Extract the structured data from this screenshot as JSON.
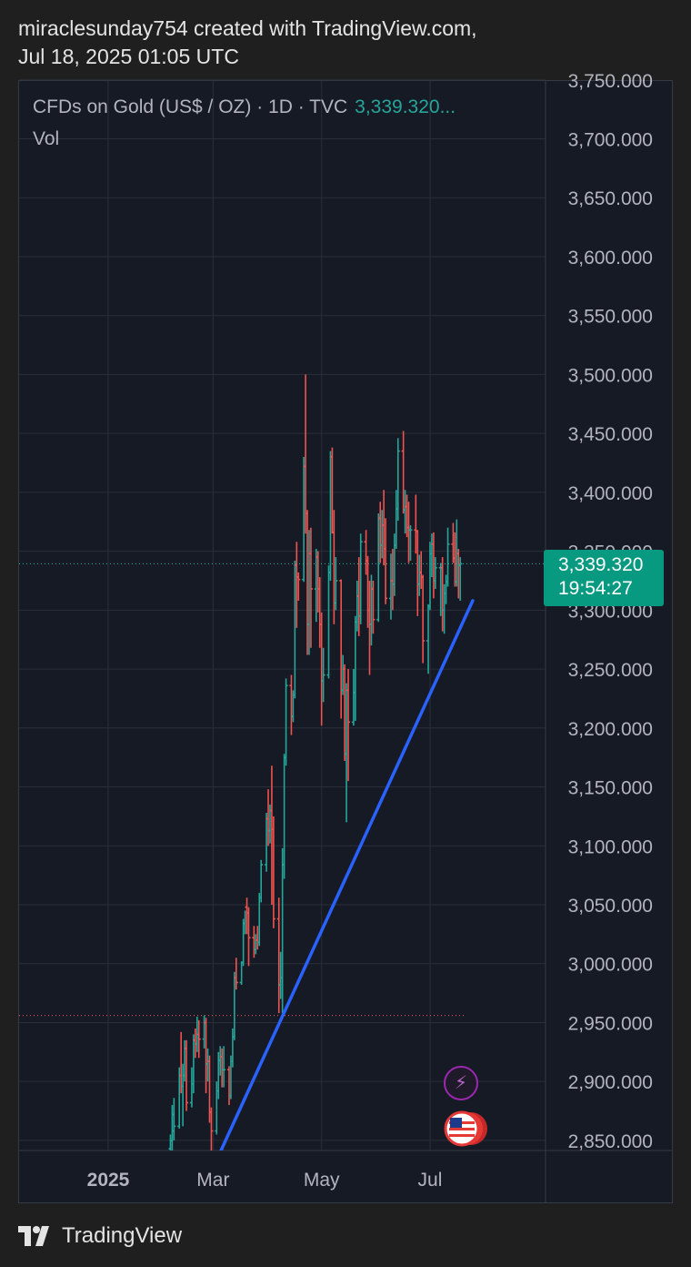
{
  "header": {
    "line1": "miraclesunday754 created with TradingView.com,",
    "line2": "Jul 18, 2025 01:05 UTC"
  },
  "legend": {
    "symbol": "CFDs on Gold (US$ / OZ) · 1D · TVC",
    "price": "3,339.320...",
    "volume_label": "Vol"
  },
  "price_tag": {
    "price": "3,339.320",
    "countdown": "19:54:27"
  },
  "footer": {
    "brand": "TradingView"
  },
  "colors": {
    "up": "#26a69a",
    "down": "#ef5350",
    "trendline": "#2962ff",
    "grid": "#2a2e39",
    "background": "#161a25"
  },
  "icons": {
    "event_bolt": "lightning-bolt-icon",
    "event_flag": "us-flag-icon"
  },
  "chart_data": {
    "type": "ohlc-bar",
    "title": "CFDs on Gold (US$ / OZ) · 1D · TVC",
    "ylim": [
      2840,
      3760
    ],
    "y_ticks": [
      {
        "value": 3700,
        "label": "3,700.000"
      },
      {
        "value": 3650,
        "label": "3,650.000"
      },
      {
        "value": 3600,
        "label": "3,600.000"
      },
      {
        "value": 3550,
        "label": "3,550.000"
      },
      {
        "value": 3500,
        "label": "3,500.000"
      },
      {
        "value": 3450,
        "label": "3,450.000"
      },
      {
        "value": 3400,
        "label": "3,400.000"
      },
      {
        "value": 3350,
        "label": "3,350.000"
      },
      {
        "value": 3300,
        "label": "3,300.000"
      },
      {
        "value": 3250,
        "label": "3,250.000"
      },
      {
        "value": 3200,
        "label": "3,200.000"
      },
      {
        "value": 3150,
        "label": "3,150.000"
      },
      {
        "value": 3100,
        "label": "3,100.000"
      },
      {
        "value": 3050,
        "label": "3,050.000"
      },
      {
        "value": 3000,
        "label": "3,000.000"
      },
      {
        "value": 2950,
        "label": "2,950.000"
      },
      {
        "value": 2900,
        "label": "2,900.000"
      },
      {
        "value": 2850,
        "label": "2,850.000"
      },
      {
        "value": 3750,
        "label": "3,750.000"
      }
    ],
    "x_ticks": [
      {
        "date": "2025-01-01",
        "label": "2025",
        "bold": true
      },
      {
        "date": "2025-03-01",
        "label": "Mar",
        "bold": false
      },
      {
        "date": "2025-05-01",
        "label": "May",
        "bold": false
      },
      {
        "date": "2025-07-01",
        "label": "Jul",
        "bold": false
      }
    ],
    "last_price": 3339.32,
    "reference_line": 2956,
    "trendline": [
      {
        "date": "2025-03-05",
        "value": 2840
      },
      {
        "date": "2025-07-25",
        "value": 3308
      }
    ],
    "bars": [
      {
        "date": "2025-02-05",
        "o": 2843,
        "h": 2855,
        "l": 2838,
        "c": 2850
      },
      {
        "date": "2025-02-06",
        "o": 2850,
        "h": 2880,
        "l": 2840,
        "c": 2872
      },
      {
        "date": "2025-02-07",
        "o": 2858,
        "h": 2886,
        "l": 2850,
        "c": 2862
      },
      {
        "date": "2025-02-10",
        "o": 2862,
        "h": 2912,
        "l": 2860,
        "c": 2905
      },
      {
        "date": "2025-02-11",
        "o": 2905,
        "h": 2942,
        "l": 2890,
        "c": 2896
      },
      {
        "date": "2025-02-12",
        "o": 2896,
        "h": 2915,
        "l": 2862,
        "c": 2905
      },
      {
        "date": "2025-02-13",
        "o": 2905,
        "h": 2935,
        "l": 2900,
        "c": 2928
      },
      {
        "date": "2025-02-14",
        "o": 2928,
        "h": 2935,
        "l": 2875,
        "c": 2882
      },
      {
        "date": "2025-02-17",
        "o": 2882,
        "h": 2912,
        "l": 2878,
        "c": 2898
      },
      {
        "date": "2025-02-18",
        "o": 2898,
        "h": 2940,
        "l": 2890,
        "c": 2935
      },
      {
        "date": "2025-02-19",
        "o": 2935,
        "h": 2945,
        "l": 2920,
        "c": 2932
      },
      {
        "date": "2025-02-20",
        "o": 2932,
        "h": 2955,
        "l": 2925,
        "c": 2940
      },
      {
        "date": "2025-02-21",
        "o": 2940,
        "h": 2952,
        "l": 2920,
        "c": 2936
      },
      {
        "date": "2025-02-24",
        "o": 2936,
        "h": 2956,
        "l": 2928,
        "c": 2950
      },
      {
        "date": "2025-02-25",
        "o": 2950,
        "h": 2954,
        "l": 2890,
        "c": 2915
      },
      {
        "date": "2025-02-26",
        "o": 2915,
        "h": 2928,
        "l": 2900,
        "c": 2917
      },
      {
        "date": "2025-02-27",
        "o": 2917,
        "h": 2922,
        "l": 2865,
        "c": 2874
      },
      {
        "date": "2025-02-28",
        "o": 2874,
        "h": 2878,
        "l": 2832,
        "c": 2858
      },
      {
        "date": "2025-03-03",
        "o": 2858,
        "h": 2900,
        "l": 2855,
        "c": 2892
      },
      {
        "date": "2025-03-04",
        "o": 2892,
        "h": 2925,
        "l": 2885,
        "c": 2918
      },
      {
        "date": "2025-03-05",
        "o": 2918,
        "h": 2930,
        "l": 2905,
        "c": 2921
      },
      {
        "date": "2025-03-06",
        "o": 2921,
        "h": 2928,
        "l": 2895,
        "c": 2910
      },
      {
        "date": "2025-03-07",
        "o": 2910,
        "h": 2930,
        "l": 2895,
        "c": 2910
      },
      {
        "date": "2025-03-10",
        "o": 2910,
        "h": 2913,
        "l": 2880,
        "c": 2888
      },
      {
        "date": "2025-03-11",
        "o": 2888,
        "h": 2922,
        "l": 2885,
        "c": 2917
      },
      {
        "date": "2025-03-12",
        "o": 2917,
        "h": 2945,
        "l": 2912,
        "c": 2938
      },
      {
        "date": "2025-03-13",
        "o": 2938,
        "h": 2993,
        "l": 2935,
        "c": 2988
      },
      {
        "date": "2025-03-14",
        "o": 2988,
        "h": 3005,
        "l": 2978,
        "c": 2984
      },
      {
        "date": "2025-03-17",
        "o": 2984,
        "h": 3002,
        "l": 2982,
        "c": 3001
      },
      {
        "date": "2025-03-18",
        "o": 3001,
        "h": 3038,
        "l": 2998,
        "c": 3034
      },
      {
        "date": "2025-03-19",
        "o": 3034,
        "h": 3045,
        "l": 3025,
        "c": 3048
      },
      {
        "date": "2025-03-20",
        "o": 3048,
        "h": 3056,
        "l": 3025,
        "c": 3043
      },
      {
        "date": "2025-03-21",
        "o": 3043,
        "h": 3048,
        "l": 2998,
        "c": 3022
      },
      {
        "date": "2025-03-24",
        "o": 3022,
        "h": 3032,
        "l": 3005,
        "c": 3012
      },
      {
        "date": "2025-03-25",
        "o": 3012,
        "h": 3025,
        "l": 3008,
        "c": 3020
      },
      {
        "date": "2025-03-26",
        "o": 3020,
        "h": 3032,
        "l": 3012,
        "c": 3018
      },
      {
        "date": "2025-03-27",
        "o": 3018,
        "h": 3060,
        "l": 3015,
        "c": 3056
      },
      {
        "date": "2025-03-28",
        "o": 3056,
        "h": 3088,
        "l": 3052,
        "c": 3084
      },
      {
        "date": "2025-03-31",
        "o": 3084,
        "h": 3128,
        "l": 3078,
        "c": 3123
      },
      {
        "date": "2025-04-01",
        "o": 3123,
        "h": 3148,
        "l": 3100,
        "c": 3113
      },
      {
        "date": "2025-04-02",
        "o": 3113,
        "h": 3135,
        "l": 3102,
        "c": 3130
      },
      {
        "date": "2025-04-03",
        "o": 3130,
        "h": 3168,
        "l": 3050,
        "c": 3114
      },
      {
        "date": "2025-04-04",
        "o": 3114,
        "h": 3125,
        "l": 3030,
        "c": 3038
      },
      {
        "date": "2025-04-07",
        "o": 3038,
        "h": 3056,
        "l": 2958,
        "c": 2982
      },
      {
        "date": "2025-04-08",
        "o": 2982,
        "h": 3010,
        "l": 2970,
        "c": 2988
      },
      {
        "date": "2025-04-09",
        "o": 2988,
        "h": 3098,
        "l": 2958,
        "c": 3084
      },
      {
        "date": "2025-04-10",
        "o": 3084,
        "h": 3178,
        "l": 3072,
        "c": 3175
      },
      {
        "date": "2025-04-11",
        "o": 3175,
        "h": 3242,
        "l": 3168,
        "c": 3236
      },
      {
        "date": "2025-04-14",
        "o": 3236,
        "h": 3245,
        "l": 3194,
        "c": 3210
      },
      {
        "date": "2025-04-15",
        "o": 3210,
        "h": 3232,
        "l": 3205,
        "c": 3228
      },
      {
        "date": "2025-04-16",
        "o": 3228,
        "h": 3342,
        "l": 3225,
        "c": 3338
      },
      {
        "date": "2025-04-17",
        "o": 3338,
        "h": 3358,
        "l": 3285,
        "c": 3328
      },
      {
        "date": "2025-04-18",
        "o": 3328,
        "h": 3332,
        "l": 3308,
        "c": 3326
      },
      {
        "date": "2025-04-21",
        "o": 3326,
        "h": 3430,
        "l": 3324,
        "c": 3422
      },
      {
        "date": "2025-04-22",
        "o": 3422,
        "h": 3500,
        "l": 3365,
        "c": 3382
      },
      {
        "date": "2025-04-23",
        "o": 3382,
        "h": 3385,
        "l": 3262,
        "c": 3288
      },
      {
        "date": "2025-04-24",
        "o": 3288,
        "h": 3368,
        "l": 3262,
        "c": 3348
      },
      {
        "date": "2025-04-25",
        "o": 3348,
        "h": 3370,
        "l": 3268,
        "c": 3318
      },
      {
        "date": "2025-04-28",
        "o": 3318,
        "h": 3352,
        "l": 3290,
        "c": 3345
      },
      {
        "date": "2025-04-29",
        "o": 3345,
        "h": 3350,
        "l": 3298,
        "c": 3318
      },
      {
        "date": "2025-04-30",
        "o": 3318,
        "h": 3328,
        "l": 3268,
        "c": 3288
      },
      {
        "date": "2025-05-01",
        "o": 3288,
        "h": 3298,
        "l": 3202,
        "c": 3240
      },
      {
        "date": "2025-05-02",
        "o": 3240,
        "h": 3268,
        "l": 3222,
        "c": 3245
      },
      {
        "date": "2025-05-05",
        "o": 3245,
        "h": 3338,
        "l": 3242,
        "c": 3332
      },
      {
        "date": "2025-05-06",
        "o": 3332,
        "h": 3435,
        "l": 3325,
        "c": 3430
      },
      {
        "date": "2025-05-07",
        "o": 3430,
        "h": 3438,
        "l": 3365,
        "c": 3366
      },
      {
        "date": "2025-05-08",
        "o": 3366,
        "h": 3385,
        "l": 3288,
        "c": 3306
      },
      {
        "date": "2025-05-09",
        "o": 3306,
        "h": 3345,
        "l": 3300,
        "c": 3325
      },
      {
        "date": "2025-05-12",
        "o": 3325,
        "h": 3326,
        "l": 3208,
        "c": 3232
      },
      {
        "date": "2025-05-13",
        "o": 3232,
        "h": 3262,
        "l": 3228,
        "c": 3250
      },
      {
        "date": "2025-05-14",
        "o": 3250,
        "h": 3254,
        "l": 3172,
        "c": 3178
      },
      {
        "date": "2025-05-15",
        "o": 3178,
        "h": 3238,
        "l": 3120,
        "c": 3232
      },
      {
        "date": "2025-05-16",
        "o": 3232,
        "h": 3250,
        "l": 3155,
        "c": 3205
      },
      {
        "date": "2025-05-19",
        "o": 3205,
        "h": 3250,
        "l": 3202,
        "c": 3230
      },
      {
        "date": "2025-05-20",
        "o": 3230,
        "h": 3295,
        "l": 3206,
        "c": 3290
      },
      {
        "date": "2025-05-21",
        "o": 3290,
        "h": 3325,
        "l": 3282,
        "c": 3312
      },
      {
        "date": "2025-05-22",
        "o": 3312,
        "h": 3345,
        "l": 3278,
        "c": 3295
      },
      {
        "date": "2025-05-23",
        "o": 3295,
        "h": 3365,
        "l": 3288,
        "c": 3358
      },
      {
        "date": "2025-05-26",
        "o": 3358,
        "h": 3368,
        "l": 3330,
        "c": 3342
      },
      {
        "date": "2025-05-27",
        "o": 3342,
        "h": 3346,
        "l": 3285,
        "c": 3300
      },
      {
        "date": "2025-05-28",
        "o": 3300,
        "h": 3325,
        "l": 3245,
        "c": 3288
      },
      {
        "date": "2025-05-29",
        "o": 3288,
        "h": 3330,
        "l": 3270,
        "c": 3318
      },
      {
        "date": "2025-05-30",
        "o": 3318,
        "h": 3325,
        "l": 3280,
        "c": 3292
      },
      {
        "date": "2025-06-02",
        "o": 3292,
        "h": 3382,
        "l": 3290,
        "c": 3378
      },
      {
        "date": "2025-06-03",
        "o": 3378,
        "h": 3392,
        "l": 3340,
        "c": 3355
      },
      {
        "date": "2025-06-04",
        "o": 3355,
        "h": 3385,
        "l": 3344,
        "c": 3372
      },
      {
        "date": "2025-06-05",
        "o": 3372,
        "h": 3402,
        "l": 3338,
        "c": 3352
      },
      {
        "date": "2025-06-06",
        "o": 3352,
        "h": 3378,
        "l": 3305,
        "c": 3310
      },
      {
        "date": "2025-06-09",
        "o": 3310,
        "h": 3348,
        "l": 3292,
        "c": 3325
      },
      {
        "date": "2025-06-10",
        "o": 3325,
        "h": 3352,
        "l": 3300,
        "c": 3322
      },
      {
        "date": "2025-06-11",
        "o": 3322,
        "h": 3365,
        "l": 3312,
        "c": 3355
      },
      {
        "date": "2025-06-12",
        "o": 3355,
        "h": 3402,
        "l": 3352,
        "c": 3386
      },
      {
        "date": "2025-06-13",
        "o": 3386,
        "h": 3446,
        "l": 3376,
        "c": 3435
      },
      {
        "date": "2025-06-16",
        "o": 3435,
        "h": 3452,
        "l": 3382,
        "c": 3385
      },
      {
        "date": "2025-06-17",
        "o": 3385,
        "h": 3402,
        "l": 3365,
        "c": 3388
      },
      {
        "date": "2025-06-18",
        "o": 3388,
        "h": 3398,
        "l": 3362,
        "c": 3370
      },
      {
        "date": "2025-06-19",
        "o": 3370,
        "h": 3392,
        "l": 3340,
        "c": 3368
      },
      {
        "date": "2025-06-20",
        "o": 3368,
        "h": 3372,
        "l": 3342,
        "c": 3368
      },
      {
        "date": "2025-06-23",
        "o": 3368,
        "h": 3398,
        "l": 3348,
        "c": 3367
      },
      {
        "date": "2025-06-24",
        "o": 3367,
        "h": 3368,
        "l": 3295,
        "c": 3322
      },
      {
        "date": "2025-06-25",
        "o": 3322,
        "h": 3347,
        "l": 3312,
        "c": 3332
      },
      {
        "date": "2025-06-26",
        "o": 3332,
        "h": 3350,
        "l": 3318,
        "c": 3328
      },
      {
        "date": "2025-06-27",
        "o": 3328,
        "h": 3330,
        "l": 3255,
        "c": 3274
      },
      {
        "date": "2025-06-30",
        "o": 3274,
        "h": 3305,
        "l": 3246,
        "c": 3303
      },
      {
        "date": "2025-07-01",
        "o": 3303,
        "h": 3358,
        "l": 3300,
        "c": 3348
      },
      {
        "date": "2025-07-02",
        "o": 3348,
        "h": 3365,
        "l": 3328,
        "c": 3356
      },
      {
        "date": "2025-07-03",
        "o": 3356,
        "h": 3366,
        "l": 3310,
        "c": 3325
      },
      {
        "date": "2025-07-04",
        "o": 3325,
        "h": 3345,
        "l": 3318,
        "c": 3336
      },
      {
        "date": "2025-07-07",
        "o": 3336,
        "h": 3340,
        "l": 3295,
        "c": 3336
      },
      {
        "date": "2025-07-08",
        "o": 3336,
        "h": 3345,
        "l": 3282,
        "c": 3300
      },
      {
        "date": "2025-07-09",
        "o": 3300,
        "h": 3322,
        "l": 3280,
        "c": 3314
      },
      {
        "date": "2025-07-10",
        "o": 3314,
        "h": 3330,
        "l": 3305,
        "c": 3324
      },
      {
        "date": "2025-07-11",
        "o": 3324,
        "h": 3370,
        "l": 3320,
        "c": 3356
      },
      {
        "date": "2025-07-14",
        "o": 3356,
        "h": 3374,
        "l": 3340,
        "c": 3344
      },
      {
        "date": "2025-07-15",
        "o": 3344,
        "h": 3366,
        "l": 3320,
        "c": 3324
      },
      {
        "date": "2025-07-16",
        "o": 3324,
        "h": 3377,
        "l": 3320,
        "c": 3348
      },
      {
        "date": "2025-07-17",
        "o": 3348,
        "h": 3352,
        "l": 3310,
        "c": 3338
      },
      {
        "date": "2025-07-18",
        "o": 3338,
        "h": 3345,
        "l": 3308,
        "c": 3339.32
      }
    ]
  }
}
